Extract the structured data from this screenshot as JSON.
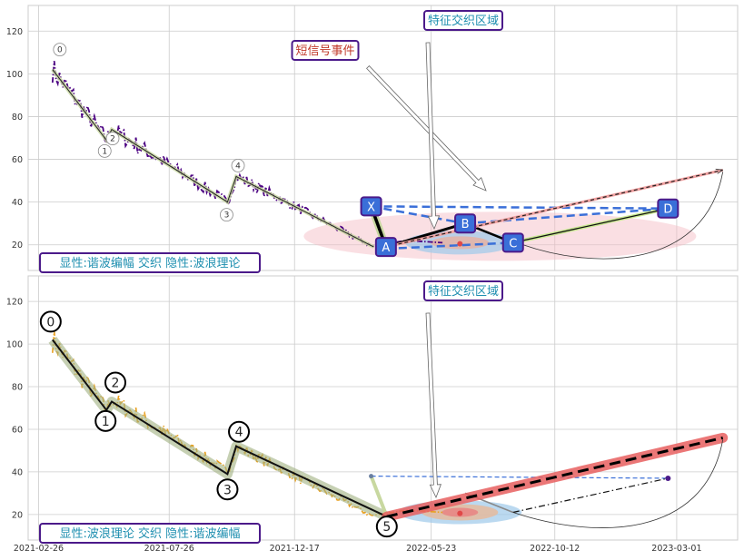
{
  "colors": {
    "purple_series": "#4b0082",
    "orange_series": "#e8a020",
    "box_border": "#4b1a8a",
    "box_text_teal": "#1f8fb0",
    "box_text_red": "#c0392b",
    "node_fill": "#3a6fd8",
    "dashed_blue": "#3a6fd8",
    "pink_fill": "#f3b8c0",
    "blue_fill": "#9ec9ea",
    "red_thick": "#e86060",
    "olive_band": "#a0b080",
    "grid": "#cccccc"
  },
  "chart_data": [
    {
      "type": "line",
      "panel": "top",
      "ylim": [
        8,
        132
      ],
      "yticks": [
        20,
        40,
        60,
        80,
        100,
        120
      ],
      "grid": true,
      "series_style": "purple dash-dot price series",
      "zigzag_points": [
        {
          "date": "2021-03-14",
          "value": 102,
          "label": "0"
        },
        {
          "date": "2021-05-15",
          "value": 69,
          "label": "1"
        },
        {
          "date": "2021-05-21",
          "value": 74,
          "label": "2"
        },
        {
          "date": "2021-10-01",
          "value": 40,
          "label": "3"
        },
        {
          "date": "2021-10-11",
          "value": 52,
          "label": "4"
        },
        {
          "date": "2022-03-18",
          "value": 19,
          "label": ""
        }
      ],
      "harmonic_points": [
        {
          "date": "2022-03-15",
          "value": 38,
          "label": "X"
        },
        {
          "date": "2022-04-01",
          "value": 19,
          "label": "A"
        },
        {
          "date": "2022-07-01",
          "value": 30,
          "label": "B"
        },
        {
          "date": "2022-08-25",
          "value": 21,
          "label": "C"
        },
        {
          "date": "2023-02-19",
          "value": 37,
          "label": "D"
        }
      ],
      "annotations": {
        "signal": "短信号事件",
        "overlap": "特征交织区域",
        "legend_box": "显性:谐波编幅 交织 隐性:波浪理论"
      }
    },
    {
      "type": "line",
      "panel": "bottom",
      "ylim": [
        8,
        132
      ],
      "yticks": [
        20,
        40,
        60,
        80,
        100,
        120
      ],
      "grid": true,
      "series_style": "orange dash-dot price series",
      "xticks": [
        "2021-02-26",
        "2021-07-26",
        "2021-12-17",
        "2022-05-23",
        "2022-10-12",
        "2023-03-01"
      ],
      "wave_points": [
        {
          "date": "2021-03-14",
          "value": 102,
          "label": "0"
        },
        {
          "date": "2021-05-15",
          "value": 69,
          "label": "1"
        },
        {
          "date": "2021-05-21",
          "value": 73,
          "label": "2"
        },
        {
          "date": "2021-10-01",
          "value": 39,
          "label": "3"
        },
        {
          "date": "2021-10-11",
          "value": 52,
          "label": "4"
        },
        {
          "date": "2022-04-02",
          "value": 19,
          "label": "5"
        }
      ],
      "projection_end": {
        "date": "2023-04-23",
        "value": 56
      },
      "annotations": {
        "overlap": "特征交织区域",
        "legend_box": "显性:波浪理论 交织 隐性:谐波编幅"
      }
    }
  ],
  "texts": {
    "top_signal": "短信号事件",
    "top_overlap": "特征交织区域",
    "top_legend": "显性:谐波编幅 交织 隐性:波浪理论",
    "bottom_overlap": "特征交织区域",
    "bottom_legend": "显性:波浪理论 交织 隐性:谐波编幅"
  }
}
